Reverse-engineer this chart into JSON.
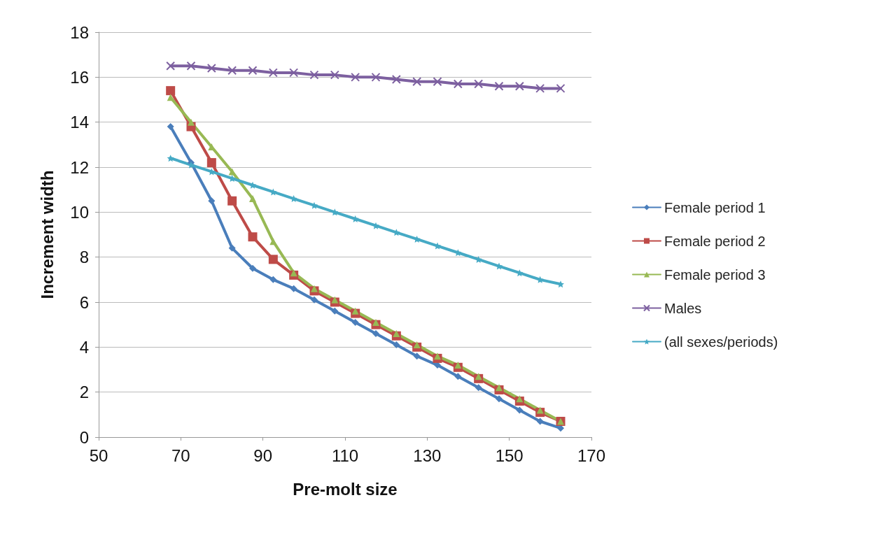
{
  "chart_data": {
    "type": "line",
    "xlabel": "Pre-molt size",
    "ylabel": "Increment width",
    "x": [
      67.5,
      72.5,
      77.5,
      82.5,
      87.5,
      92.5,
      97.5,
      102.5,
      107.5,
      112.5,
      117.5,
      122.5,
      127.5,
      132.5,
      137.5,
      142.5,
      147.5,
      152.5,
      157.5,
      162.5
    ],
    "xlim": [
      50,
      170
    ],
    "xticks": [
      50,
      70,
      90,
      110,
      130,
      150,
      170
    ],
    "ylim": [
      0,
      18
    ],
    "yticks": [
      0,
      2,
      4,
      6,
      8,
      10,
      12,
      14,
      16,
      18
    ],
    "grid": "y",
    "legend": "right",
    "line_style": "solid",
    "series": [
      {
        "name": "Female period 1",
        "color": "#4a7ebb",
        "marker": "diamond",
        "values": [
          13.8,
          12.2,
          10.5,
          8.4,
          7.5,
          7.0,
          6.6,
          6.1,
          5.6,
          5.1,
          4.6,
          4.1,
          3.6,
          3.2,
          2.7,
          2.2,
          1.7,
          1.2,
          0.7,
          0.4
        ]
      },
      {
        "name": "Female period 2",
        "color": "#be4b48",
        "marker": "square",
        "values": [
          15.4,
          13.8,
          12.2,
          10.5,
          8.9,
          7.9,
          7.2,
          6.5,
          6.0,
          5.5,
          5.0,
          4.5,
          4.0,
          3.5,
          3.1,
          2.6,
          2.1,
          1.6,
          1.1,
          0.7
        ]
      },
      {
        "name": "Female period 3",
        "color": "#98b954",
        "marker": "triangle",
        "values": [
          15.1,
          14.0,
          12.9,
          11.8,
          10.6,
          8.7,
          7.3,
          6.6,
          6.1,
          5.6,
          5.1,
          4.6,
          4.1,
          3.6,
          3.2,
          2.7,
          2.2,
          1.7,
          1.2,
          0.7
        ]
      },
      {
        "name": "Males",
        "color": "#7d60a0",
        "marker": "cross",
        "values": [
          16.5,
          16.5,
          16.4,
          16.3,
          16.3,
          16.2,
          16.2,
          16.1,
          16.1,
          16.0,
          16.0,
          15.9,
          15.8,
          15.8,
          15.7,
          15.7,
          15.6,
          15.6,
          15.5,
          15.5
        ]
      },
      {
        "name": "(all sexes/periods)",
        "color": "#46aac5",
        "marker": "star",
        "values": [
          12.4,
          12.1,
          11.8,
          11.5,
          11.2,
          10.9,
          10.6,
          10.3,
          10.0,
          9.7,
          9.4,
          9.1,
          8.8,
          8.5,
          8.2,
          7.9,
          7.6,
          7.3,
          7.0,
          6.8
        ]
      }
    ]
  }
}
